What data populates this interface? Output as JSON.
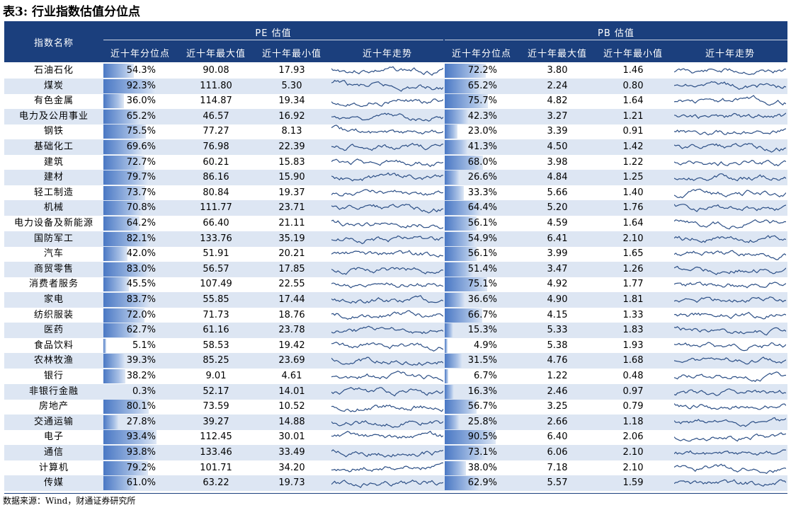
{
  "title": "表3: 行业指数估值分位点",
  "header": {
    "index_name": "指数名称",
    "pe_group": "PE 估值",
    "pb_group": "PB 估值",
    "pctl": "近十年分位点",
    "max": "近十年最大值",
    "min": "近十年最小值",
    "trend": "近十年走势"
  },
  "rows": [
    {
      "name": "石油石化",
      "pe_pct": "54.3%",
      "pe_pct_v": 54.3,
      "pe_max": "90.08",
      "pe_min": "17.93",
      "pb_pct": "72.2%",
      "pb_pct_v": 72.2,
      "pb_max": "3.80",
      "pb_min": "1.46"
    },
    {
      "name": "煤炭",
      "pe_pct": "92.3%",
      "pe_pct_v": 92.3,
      "pe_max": "111.80",
      "pe_min": "5.30",
      "pb_pct": "65.2%",
      "pb_pct_v": 65.2,
      "pb_max": "2.24",
      "pb_min": "0.80"
    },
    {
      "name": "有色金属",
      "pe_pct": "36.0%",
      "pe_pct_v": 36.0,
      "pe_max": "114.87",
      "pe_min": "19.34",
      "pb_pct": "75.7%",
      "pb_pct_v": 75.7,
      "pb_max": "4.82",
      "pb_min": "1.64"
    },
    {
      "name": "电力及公用事业",
      "pe_pct": "65.2%",
      "pe_pct_v": 65.2,
      "pe_max": "46.57",
      "pe_min": "16.92",
      "pb_pct": "42.3%",
      "pb_pct_v": 42.3,
      "pb_max": "3.27",
      "pb_min": "1.21"
    },
    {
      "name": "钢铁",
      "pe_pct": "75.5%",
      "pe_pct_v": 75.5,
      "pe_max": "77.27",
      "pe_min": "8.13",
      "pb_pct": "23.0%",
      "pb_pct_v": 23.0,
      "pb_max": "3.39",
      "pb_min": "0.91"
    },
    {
      "name": "基础化工",
      "pe_pct": "69.6%",
      "pe_pct_v": 69.6,
      "pe_max": "76.98",
      "pe_min": "22.39",
      "pb_pct": "41.3%",
      "pb_pct_v": 41.3,
      "pb_max": "4.50",
      "pb_min": "1.42"
    },
    {
      "name": "建筑",
      "pe_pct": "72.7%",
      "pe_pct_v": 72.7,
      "pe_max": "60.21",
      "pe_min": "15.83",
      "pb_pct": "68.0%",
      "pb_pct_v": 68.0,
      "pb_max": "3.98",
      "pb_min": "1.22"
    },
    {
      "name": "建材",
      "pe_pct": "79.7%",
      "pe_pct_v": 79.7,
      "pe_max": "86.16",
      "pe_min": "15.90",
      "pb_pct": "26.6%",
      "pb_pct_v": 26.6,
      "pb_max": "4.84",
      "pb_min": "1.25"
    },
    {
      "name": "轻工制造",
      "pe_pct": "73.7%",
      "pe_pct_v": 73.7,
      "pe_max": "80.84",
      "pe_min": "19.37",
      "pb_pct": "33.3%",
      "pb_pct_v": 33.3,
      "pb_max": "5.66",
      "pb_min": "1.40"
    },
    {
      "name": "机械",
      "pe_pct": "70.8%",
      "pe_pct_v": 70.8,
      "pe_max": "111.77",
      "pe_min": "23.71",
      "pb_pct": "64.4%",
      "pb_pct_v": 64.4,
      "pb_max": "5.20",
      "pb_min": "1.76"
    },
    {
      "name": "电力设备及新能源",
      "pe_pct": "64.2%",
      "pe_pct_v": 64.2,
      "pe_max": "66.40",
      "pe_min": "21.11",
      "pb_pct": "56.1%",
      "pb_pct_v": 56.1,
      "pb_max": "4.59",
      "pb_min": "1.64"
    },
    {
      "name": "国防军工",
      "pe_pct": "82.1%",
      "pe_pct_v": 82.1,
      "pe_max": "133.76",
      "pe_min": "35.19",
      "pb_pct": "54.9%",
      "pb_pct_v": 54.9,
      "pb_max": "6.41",
      "pb_min": "2.10"
    },
    {
      "name": "汽车",
      "pe_pct": "42.0%",
      "pe_pct_v": 42.0,
      "pe_max": "51.91",
      "pe_min": "20.21",
      "pb_pct": "56.1%",
      "pb_pct_v": 56.1,
      "pb_max": "3.99",
      "pb_min": "1.65"
    },
    {
      "name": "商贸零售",
      "pe_pct": "83.0%",
      "pe_pct_v": 83.0,
      "pe_max": "56.57",
      "pe_min": "17.85",
      "pb_pct": "51.4%",
      "pb_pct_v": 51.4,
      "pb_max": "3.47",
      "pb_min": "1.26"
    },
    {
      "name": "消费者服务",
      "pe_pct": "45.5%",
      "pe_pct_v": 45.5,
      "pe_max": "107.49",
      "pe_min": "22.55",
      "pb_pct": "75.1%",
      "pb_pct_v": 75.1,
      "pb_max": "4.92",
      "pb_min": "1.77"
    },
    {
      "name": "家电",
      "pe_pct": "83.7%",
      "pe_pct_v": 83.7,
      "pe_max": "55.85",
      "pe_min": "17.44",
      "pb_pct": "36.6%",
      "pb_pct_v": 36.6,
      "pb_max": "4.90",
      "pb_min": "1.81"
    },
    {
      "name": "纺织服装",
      "pe_pct": "72.0%",
      "pe_pct_v": 72.0,
      "pe_max": "71.73",
      "pe_min": "18.76",
      "pb_pct": "66.7%",
      "pb_pct_v": 66.7,
      "pb_max": "4.15",
      "pb_min": "1.33"
    },
    {
      "name": "医药",
      "pe_pct": "62.7%",
      "pe_pct_v": 62.7,
      "pe_max": "61.16",
      "pe_min": "23.78",
      "pb_pct": "15.3%",
      "pb_pct_v": 15.3,
      "pb_max": "5.33",
      "pb_min": "1.83"
    },
    {
      "name": "食品饮料",
      "pe_pct": "5.1%",
      "pe_pct_v": 5.1,
      "pe_max": "58.53",
      "pe_min": "19.42",
      "pb_pct": "4.9%",
      "pb_pct_v": 4.9,
      "pb_max": "5.38",
      "pb_min": "1.93"
    },
    {
      "name": "农林牧渔",
      "pe_pct": "39.3%",
      "pe_pct_v": 39.3,
      "pe_max": "85.25",
      "pe_min": "23.69",
      "pb_pct": "31.5%",
      "pb_pct_v": 31.5,
      "pb_max": "4.76",
      "pb_min": "1.68"
    },
    {
      "name": "银行",
      "pe_pct": "38.2%",
      "pe_pct_v": 38.2,
      "pe_max": "9.01",
      "pe_min": "4.61",
      "pb_pct": "6.7%",
      "pb_pct_v": 6.7,
      "pb_max": "1.22",
      "pb_min": "0.48"
    },
    {
      "name": "非银行金融",
      "pe_pct": "0.3%",
      "pe_pct_v": 0.3,
      "pe_max": "52.17",
      "pe_min": "14.01",
      "pb_pct": "16.3%",
      "pb_pct_v": 16.3,
      "pb_max": "2.46",
      "pb_min": "0.97"
    },
    {
      "name": "房地产",
      "pe_pct": "80.1%",
      "pe_pct_v": 80.1,
      "pe_max": "73.59",
      "pe_min": "10.52",
      "pb_pct": "56.7%",
      "pb_pct_v": 56.7,
      "pb_max": "3.25",
      "pb_min": "0.79"
    },
    {
      "name": "交通运输",
      "pe_pct": "27.8%",
      "pe_pct_v": 27.8,
      "pe_max": "39.27",
      "pe_min": "14.88",
      "pb_pct": "25.8%",
      "pb_pct_v": 25.8,
      "pb_max": "2.66",
      "pb_min": "1.18"
    },
    {
      "name": "电子",
      "pe_pct": "93.4%",
      "pe_pct_v": 93.4,
      "pe_max": "112.45",
      "pe_min": "30.01",
      "pb_pct": "90.5%",
      "pb_pct_v": 90.5,
      "pb_max": "6.40",
      "pb_min": "2.06"
    },
    {
      "name": "通信",
      "pe_pct": "93.8%",
      "pe_pct_v": 93.8,
      "pe_max": "133.46",
      "pe_min": "33.49",
      "pb_pct": "73.1%",
      "pb_pct_v": 73.1,
      "pb_max": "6.06",
      "pb_min": "2.10"
    },
    {
      "name": "计算机",
      "pe_pct": "79.2%",
      "pe_pct_v": 79.2,
      "pe_max": "101.71",
      "pe_min": "34.20",
      "pb_pct": "38.0%",
      "pb_pct_v": 38.0,
      "pb_max": "7.18",
      "pb_min": "2.10"
    },
    {
      "name": "传媒",
      "pe_pct": "61.0%",
      "pe_pct_v": 61.0,
      "pe_max": "63.22",
      "pe_min": "19.73",
      "pb_pct": "62.9%",
      "pb_pct_v": 62.9,
      "pb_max": "5.57",
      "pb_min": "1.59"
    }
  ],
  "colors": {
    "header_bg": "#1b3f7d",
    "row_alt": "#dde6f3",
    "bar": "#4a78c4",
    "spark": "#2c4f86"
  },
  "footer": "数据来源：Wind，财通证券研究所"
}
